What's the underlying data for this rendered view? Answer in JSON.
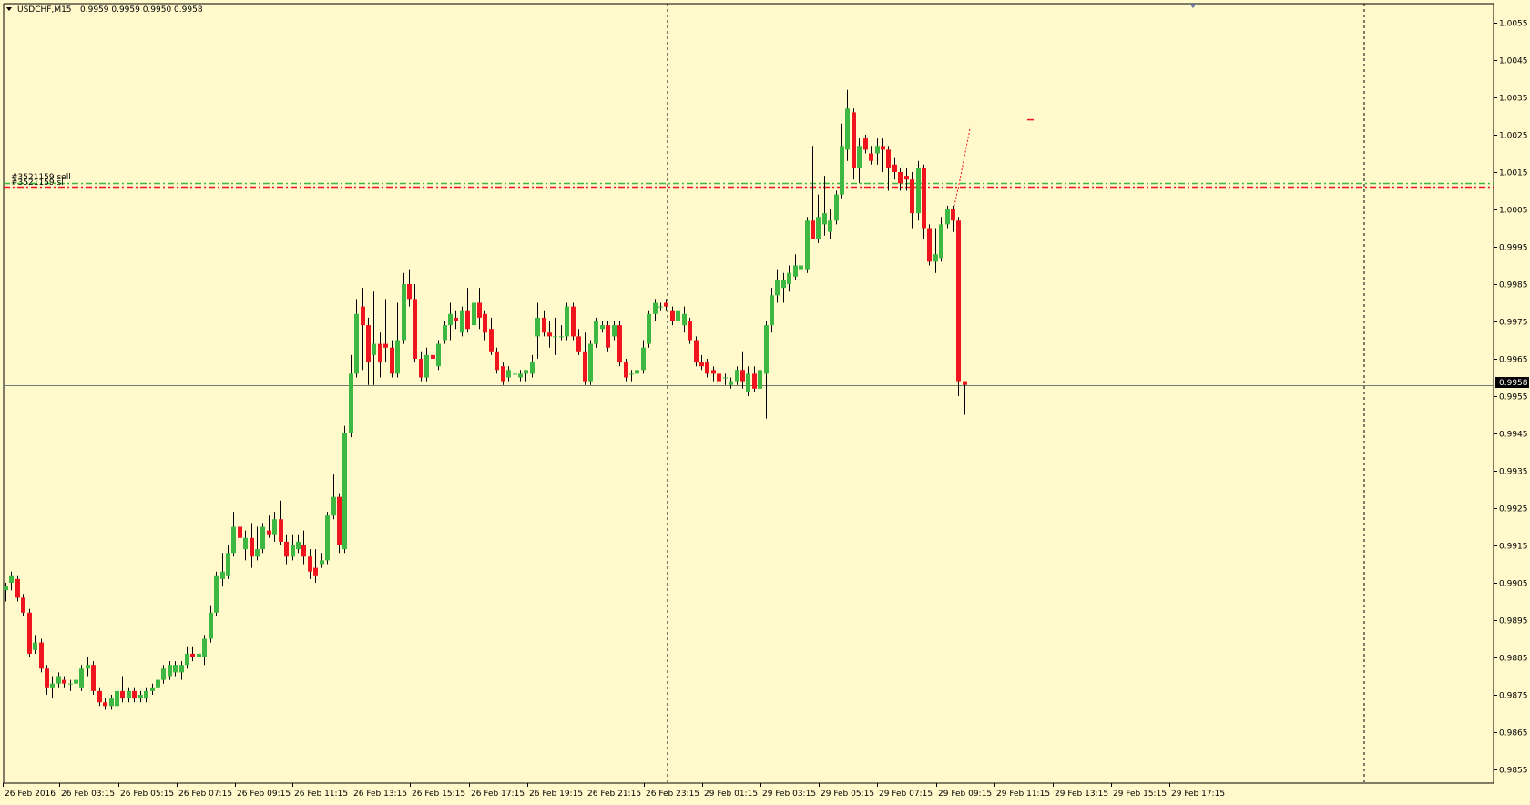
{
  "header": {
    "symbol": "USDCHF,M15",
    "ohlc": "0.9959 0.9959 0.9950 0.9958"
  },
  "current_price_label": "0.9958",
  "order_labels": [
    "#3521159 sell",
    "#3521159 sl"
  ],
  "colors": {
    "background": "#FFF9CC",
    "bull": "#3CB843",
    "bear": "#F0141E",
    "wick": "#000000",
    "order_line": "#3CB843",
    "sl_line": "#F0141E",
    "bid_line": "#6E7E6E",
    "separator": "#000000"
  },
  "chart_data": {
    "type": "candlestick",
    "symbol": "USDCHF",
    "timeframe": "M15",
    "ylim": [
      0.985,
      1.006
    ],
    "y_ticks": [
      "1.0055",
      "1.0045",
      "1.0035",
      "1.0025",
      "1.0015",
      "1.0005",
      "0.9995",
      "0.9985",
      "0.9975",
      "0.9965",
      "0.9955",
      "0.9945",
      "0.9935",
      "0.9925",
      "0.9915",
      "0.9905",
      "0.9895",
      "0.9885",
      "0.9875",
      "0.9865",
      "0.9855"
    ],
    "x_labels": [
      "26 Feb 2016",
      "26 Feb 03:15",
      "26 Feb 05:15",
      "26 Feb 07:15",
      "26 Feb 09:15",
      "26 Feb 11:15",
      "26 Feb 13:15",
      "26 Feb 15:15",
      "26 Feb 17:15",
      "26 Feb 19:15",
      "26 Feb 21:15",
      "26 Feb 23:15",
      "29 Feb 01:15",
      "29 Feb 03:15",
      "29 Feb 05:15",
      "29 Feb 07:15",
      "29 Feb 09:15",
      "29 Feb 11:15",
      "29 Feb 13:15",
      "29 Feb 15:15",
      "29 Feb 17:15"
    ],
    "horizontal_lines": [
      {
        "name": "#3521159 sell",
        "price": 1.0012,
        "style": "dash-dot",
        "color": "#3CB843"
      },
      {
        "name": "#3521159 sl",
        "price": 1.0011,
        "style": "dash-dot",
        "color": "#F0141E"
      },
      {
        "name": "bid",
        "price": 0.9958,
        "style": "solid",
        "color": "#6E7E6E"
      }
    ],
    "period_separators": [
      "26 Feb 23:15",
      "29 Feb 23:15"
    ],
    "candles": [
      {
        "o": 0.9903,
        "h": 0.9905,
        "l": 0.99,
        "c": 0.9904
      },
      {
        "o": 0.9905,
        "h": 0.9908,
        "l": 0.9903,
        "c": 0.9907
      },
      {
        "o": 0.9906,
        "h": 0.9907,
        "l": 0.99,
        "c": 0.9901
      },
      {
        "o": 0.9901,
        "h": 0.9902,
        "l": 0.9896,
        "c": 0.9897
      },
      {
        "o": 0.9897,
        "h": 0.9898,
        "l": 0.9885,
        "c": 0.9886
      },
      {
        "o": 0.9887,
        "h": 0.9891,
        "l": 0.9886,
        "c": 0.9889
      },
      {
        "o": 0.9889,
        "h": 0.989,
        "l": 0.9881,
        "c": 0.9882
      },
      {
        "o": 0.9882,
        "h": 0.9883,
        "l": 0.9875,
        "c": 0.9877
      },
      {
        "o": 0.9877,
        "h": 0.988,
        "l": 0.9874,
        "c": 0.9878
      },
      {
        "o": 0.9878,
        "h": 0.9881,
        "l": 0.9877,
        "c": 0.988
      },
      {
        "o": 0.9879,
        "h": 0.988,
        "l": 0.9877,
        "c": 0.9878
      },
      {
        "o": 0.9878,
        "h": 0.9879,
        "l": 0.9876,
        "c": 0.9878
      },
      {
        "o": 0.9878,
        "h": 0.9881,
        "l": 0.9877,
        "c": 0.9879
      },
      {
        "o": 0.9877,
        "h": 0.9883,
        "l": 0.9876,
        "c": 0.9882
      },
      {
        "o": 0.9882,
        "h": 0.9885,
        "l": 0.988,
        "c": 0.9883
      },
      {
        "o": 0.9883,
        "h": 0.9884,
        "l": 0.9875,
        "c": 0.9876
      },
      {
        "o": 0.9876,
        "h": 0.9877,
        "l": 0.9872,
        "c": 0.9873
      },
      {
        "o": 0.9873,
        "h": 0.9874,
        "l": 0.9871,
        "c": 0.9872
      },
      {
        "o": 0.9872,
        "h": 0.9875,
        "l": 0.9871,
        "c": 0.9874
      },
      {
        "o": 0.9872,
        "h": 0.9878,
        "l": 0.987,
        "c": 0.9876
      },
      {
        "o": 0.9876,
        "h": 0.988,
        "l": 0.9873,
        "c": 0.9874
      },
      {
        "o": 0.9874,
        "h": 0.9877,
        "l": 0.9873,
        "c": 0.9876
      },
      {
        "o": 0.9876,
        "h": 0.9877,
        "l": 0.9873,
        "c": 0.9874
      },
      {
        "o": 0.9874,
        "h": 0.9876,
        "l": 0.9873,
        "c": 0.9875
      },
      {
        "o": 0.9874,
        "h": 0.9877,
        "l": 0.9873,
        "c": 0.9876
      },
      {
        "o": 0.9876,
        "h": 0.9878,
        "l": 0.9875,
        "c": 0.9877
      },
      {
        "o": 0.9877,
        "h": 0.9881,
        "l": 0.9876,
        "c": 0.9879
      },
      {
        "o": 0.9879,
        "h": 0.9883,
        "l": 0.9878,
        "c": 0.9882
      },
      {
        "o": 0.988,
        "h": 0.9884,
        "l": 0.9879,
        "c": 0.9883
      },
      {
        "o": 0.9881,
        "h": 0.9884,
        "l": 0.988,
        "c": 0.9883
      },
      {
        "o": 0.9881,
        "h": 0.9884,
        "l": 0.9879,
        "c": 0.9883
      },
      {
        "o": 0.9883,
        "h": 0.9888,
        "l": 0.9882,
        "c": 0.9886
      },
      {
        "o": 0.9886,
        "h": 0.9888,
        "l": 0.9884,
        "c": 0.9885
      },
      {
        "o": 0.9885,
        "h": 0.9887,
        "l": 0.9883,
        "c": 0.9886
      },
      {
        "o": 0.9885,
        "h": 0.9891,
        "l": 0.9883,
        "c": 0.989
      },
      {
        "o": 0.989,
        "h": 0.9899,
        "l": 0.9889,
        "c": 0.9897
      },
      {
        "o": 0.9897,
        "h": 0.9908,
        "l": 0.9896,
        "c": 0.9907
      },
      {
        "o": 0.9906,
        "h": 0.9913,
        "l": 0.9904,
        "c": 0.9908
      },
      {
        "o": 0.9907,
        "h": 0.9915,
        "l": 0.9906,
        "c": 0.9913
      },
      {
        "o": 0.9913,
        "h": 0.9924,
        "l": 0.9912,
        "c": 0.992
      },
      {
        "o": 0.992,
        "h": 0.9922,
        "l": 0.9912,
        "c": 0.9917
      },
      {
        "o": 0.9914,
        "h": 0.9919,
        "l": 0.9911,
        "c": 0.9917
      },
      {
        "o": 0.9917,
        "h": 0.9921,
        "l": 0.9909,
        "c": 0.9912
      },
      {
        "o": 0.9912,
        "h": 0.992,
        "l": 0.9911,
        "c": 0.9914
      },
      {
        "o": 0.9914,
        "h": 0.9921,
        "l": 0.9913,
        "c": 0.992
      },
      {
        "o": 0.9919,
        "h": 0.9923,
        "l": 0.9917,
        "c": 0.9918
      },
      {
        "o": 0.9918,
        "h": 0.9924,
        "l": 0.9916,
        "c": 0.9922
      },
      {
        "o": 0.9922,
        "h": 0.9927,
        "l": 0.9915,
        "c": 0.9916
      },
      {
        "o": 0.9916,
        "h": 0.9918,
        "l": 0.991,
        "c": 0.9912
      },
      {
        "o": 0.9912,
        "h": 0.9918,
        "l": 0.9911,
        "c": 0.9915
      },
      {
        "o": 0.9914,
        "h": 0.9918,
        "l": 0.9913,
        "c": 0.9916
      },
      {
        "o": 0.9915,
        "h": 0.9919,
        "l": 0.991,
        "c": 0.9912
      },
      {
        "o": 0.9912,
        "h": 0.9914,
        "l": 0.9906,
        "c": 0.9908
      },
      {
        "o": 0.9909,
        "h": 0.9914,
        "l": 0.9905,
        "c": 0.9907
      },
      {
        "o": 0.991,
        "h": 0.9913,
        "l": 0.9909,
        "c": 0.9911
      },
      {
        "o": 0.9911,
        "h": 0.9924,
        "l": 0.991,
        "c": 0.9923
      },
      {
        "o": 0.9923,
        "h": 0.9934,
        "l": 0.9922,
        "c": 0.9928
      },
      {
        "o": 0.9928,
        "h": 0.9929,
        "l": 0.9913,
        "c": 0.9915
      },
      {
        "o": 0.9914,
        "h": 0.9947,
        "l": 0.9913,
        "c": 0.9945
      },
      {
        "o": 0.9945,
        "h": 0.9966,
        "l": 0.9944,
        "c": 0.9961
      },
      {
        "o": 0.9961,
        "h": 0.9981,
        "l": 0.996,
        "c": 0.9977
      },
      {
        "o": 0.9979,
        "h": 0.9984,
        "l": 0.9962,
        "c": 0.9974
      },
      {
        "o": 0.9974,
        "h": 0.9976,
        "l": 0.9958,
        "c": 0.9964
      },
      {
        "o": 0.9966,
        "h": 0.9983,
        "l": 0.9958,
        "c": 0.9969
      },
      {
        "o": 0.9969,
        "h": 0.9972,
        "l": 0.996,
        "c": 0.9964
      },
      {
        "o": 0.9969,
        "h": 0.9981,
        "l": 0.9964,
        "c": 0.9968
      },
      {
        "o": 0.9968,
        "h": 0.997,
        "l": 0.996,
        "c": 0.9961
      },
      {
        "o": 0.9961,
        "h": 0.998,
        "l": 0.996,
        "c": 0.997
      },
      {
        "o": 0.997,
        "h": 0.9988,
        "l": 0.9969,
        "c": 0.9985
      },
      {
        "o": 0.9985,
        "h": 0.9989,
        "l": 0.9979,
        "c": 0.9981
      },
      {
        "o": 0.9981,
        "h": 0.9985,
        "l": 0.9964,
        "c": 0.9965
      },
      {
        "o": 0.9965,
        "h": 0.9967,
        "l": 0.9959,
        "c": 0.996
      },
      {
        "o": 0.996,
        "h": 0.9968,
        "l": 0.9959,
        "c": 0.9966
      },
      {
        "o": 0.9966,
        "h": 0.9967,
        "l": 0.9963,
        "c": 0.9965
      },
      {
        "o": 0.9963,
        "h": 0.997,
        "l": 0.9962,
        "c": 0.9969
      },
      {
        "o": 0.997,
        "h": 0.9975,
        "l": 0.9969,
        "c": 0.9974
      },
      {
        "o": 0.9974,
        "h": 0.998,
        "l": 0.997,
        "c": 0.9977
      },
      {
        "o": 0.9976,
        "h": 0.9978,
        "l": 0.9973,
        "c": 0.9975
      },
      {
        "o": 0.9972,
        "h": 0.9979,
        "l": 0.9971,
        "c": 0.9978
      },
      {
        "o": 0.9978,
        "h": 0.9984,
        "l": 0.9972,
        "c": 0.9973
      },
      {
        "o": 0.9974,
        "h": 0.9982,
        "l": 0.9972,
        "c": 0.998
      },
      {
        "o": 0.998,
        "h": 0.9984,
        "l": 0.9973,
        "c": 0.9976
      },
      {
        "o": 0.9977,
        "h": 0.9978,
        "l": 0.997,
        "c": 0.9972
      },
      {
        "o": 0.9973,
        "h": 0.9976,
        "l": 0.9966,
        "c": 0.9967
      },
      {
        "o": 0.9967,
        "h": 0.9968,
        "l": 0.9961,
        "c": 0.9962
      },
      {
        "o": 0.9963,
        "h": 0.9964,
        "l": 0.9958,
        "c": 0.9959
      },
      {
        "o": 0.996,
        "h": 0.9963,
        "l": 0.9959,
        "c": 0.9962
      },
      {
        "o": 0.9961,
        "h": 0.9962,
        "l": 0.996,
        "c": 0.9961
      },
      {
        "o": 0.996,
        "h": 0.9962,
        "l": 0.9959,
        "c": 0.9961
      },
      {
        "o": 0.9961,
        "h": 0.9962,
        "l": 0.9959,
        "c": 0.9962
      },
      {
        "o": 0.9961,
        "h": 0.9966,
        "l": 0.996,
        "c": 0.9964
      },
      {
        "o": 0.9971,
        "h": 0.998,
        "l": 0.9965,
        "c": 0.9976
      },
      {
        "o": 0.9976,
        "h": 0.9978,
        "l": 0.9971,
        "c": 0.9972
      },
      {
        "o": 0.9972,
        "h": 0.9975,
        "l": 0.9968,
        "c": 0.9971
      },
      {
        "o": 0.9971,
        "h": 0.9976,
        "l": 0.9966,
        "c": 0.9971
      },
      {
        "o": 0.9971,
        "h": 0.9974,
        "l": 0.997,
        "c": 0.9971
      },
      {
        "o": 0.9971,
        "h": 0.998,
        "l": 0.997,
        "c": 0.9979
      },
      {
        "o": 0.9979,
        "h": 0.998,
        "l": 0.997,
        "c": 0.9971
      },
      {
        "o": 0.9971,
        "h": 0.9973,
        "l": 0.9966,
        "c": 0.9967
      },
      {
        "o": 0.9967,
        "h": 0.9972,
        "l": 0.9958,
        "c": 0.9959
      },
      {
        "o": 0.9959,
        "h": 0.997,
        "l": 0.9958,
        "c": 0.9969
      },
      {
        "o": 0.9969,
        "h": 0.9976,
        "l": 0.9968,
        "c": 0.9975
      },
      {
        "o": 0.9973,
        "h": 0.9975,
        "l": 0.9972,
        "c": 0.9974
      },
      {
        "o": 0.9974,
        "h": 0.9975,
        "l": 0.9967,
        "c": 0.9968
      },
      {
        "o": 0.9971,
        "h": 0.9975,
        "l": 0.997,
        "c": 0.9974
      },
      {
        "o": 0.9974,
        "h": 0.9975,
        "l": 0.9963,
        "c": 0.9964
      },
      {
        "o": 0.9964,
        "h": 0.9965,
        "l": 0.9959,
        "c": 0.996
      },
      {
        "o": 0.9961,
        "h": 0.9962,
        "l": 0.9959,
        "c": 0.9961
      },
      {
        "o": 0.9961,
        "h": 0.9963,
        "l": 0.996,
        "c": 0.9962
      },
      {
        "o": 0.9962,
        "h": 0.997,
        "l": 0.9961,
        "c": 0.9968
      },
      {
        "o": 0.9969,
        "h": 0.9978,
        "l": 0.9968,
        "c": 0.9977
      },
      {
        "o": 0.9977,
        "h": 0.9981,
        "l": 0.9975,
        "c": 0.998
      },
      {
        "o": 0.9979,
        "h": 0.998,
        "l": 0.9978,
        "c": 0.9979
      },
      {
        "o": 0.998,
        "h": 0.9981,
        "l": 0.9978,
        "c": 0.9979
      },
      {
        "o": 0.9978,
        "h": 0.9979,
        "l": 0.9974,
        "c": 0.9975
      },
      {
        "o": 0.9975,
        "h": 0.9979,
        "l": 0.9974,
        "c": 0.9978
      },
      {
        "o": 0.9974,
        "h": 0.9979,
        "l": 0.9972,
        "c": 0.9977
      },
      {
        "o": 0.9975,
        "h": 0.9976,
        "l": 0.9969,
        "c": 0.997
      },
      {
        "o": 0.997,
        "h": 0.9971,
        "l": 0.9963,
        "c": 0.9964
      },
      {
        "o": 0.9964,
        "h": 0.9966,
        "l": 0.9962,
        "c": 0.9963
      },
      {
        "o": 0.9964,
        "h": 0.9965,
        "l": 0.996,
        "c": 0.9961
      },
      {
        "o": 0.9962,
        "h": 0.9963,
        "l": 0.9959,
        "c": 0.9961
      },
      {
        "o": 0.9961,
        "h": 0.9962,
        "l": 0.9958,
        "c": 0.9959
      },
      {
        "o": 0.996,
        "h": 0.9961,
        "l": 0.9958,
        "c": 0.996
      },
      {
        "o": 0.9958,
        "h": 0.996,
        "l": 0.9957,
        "c": 0.9959
      },
      {
        "o": 0.9959,
        "h": 0.9963,
        "l": 0.9958,
        "c": 0.9962
      },
      {
        "o": 0.9962,
        "h": 0.9967,
        "l": 0.9957,
        "c": 0.9959
      },
      {
        "o": 0.9956,
        "h": 0.9963,
        "l": 0.9955,
        "c": 0.9961
      },
      {
        "o": 0.9961,
        "h": 0.9963,
        "l": 0.9956,
        "c": 0.9957
      },
      {
        "o": 0.9957,
        "h": 0.9963,
        "l": 0.9954,
        "c": 0.9962
      },
      {
        "o": 0.9961,
        "h": 0.9975,
        "l": 0.9949,
        "c": 0.9974
      },
      {
        "o": 0.9974,
        "h": 0.9984,
        "l": 0.9972,
        "c": 0.9982
      },
      {
        "o": 0.9982,
        "h": 0.9989,
        "l": 0.998,
        "c": 0.9986
      },
      {
        "o": 0.9984,
        "h": 0.9988,
        "l": 0.998,
        "c": 0.9986
      },
      {
        "o": 0.9985,
        "h": 0.999,
        "l": 0.9983,
        "c": 0.9988
      },
      {
        "o": 0.9987,
        "h": 0.9993,
        "l": 0.9986,
        "c": 0.999
      },
      {
        "o": 0.9989,
        "h": 0.9993,
        "l": 0.9987,
        "c": 0.999
      },
      {
        "o": 0.9989,
        "h": 1.0003,
        "l": 0.9988,
        "c": 1.0002
      },
      {
        "o": 1.0002,
        "h": 1.0022,
        "l": 0.9997,
        "c": 0.9997
      },
      {
        "o": 0.9997,
        "h": 1.0009,
        "l": 0.9996,
        "c": 1.0003
      },
      {
        "o": 1.0001,
        "h": 1.0014,
        "l": 0.9998,
        "c": 1.0004
      },
      {
        "o": 0.9999,
        "h": 1.0005,
        "l": 0.9997,
        "c": 1.0002
      },
      {
        "o": 1.0002,
        "h": 1.001,
        "l": 1.0001,
        "c": 1.0009
      },
      {
        "o": 1.0009,
        "h": 1.0028,
        "l": 1.0008,
        "c": 1.0022
      },
      {
        "o": 1.0021,
        "h": 1.0037,
        "l": 1.0018,
        "c": 1.0032
      },
      {
        "o": 1.0031,
        "h": 1.0032,
        "l": 1.0013,
        "c": 1.0016
      },
      {
        "o": 1.0016,
        "h": 1.0024,
        "l": 1.0012,
        "c": 1.0022
      },
      {
        "o": 1.0024,
        "h": 1.0025,
        "l": 1.002,
        "c": 1.0021
      },
      {
        "o": 1.002,
        "h": 1.0022,
        "l": 1.0017,
        "c": 1.0018
      },
      {
        "o": 1.002,
        "h": 1.0024,
        "l": 1.0017,
        "c": 1.0022
      },
      {
        "o": 1.0022,
        "h": 1.0024,
        "l": 1.0015,
        "c": 1.0021
      },
      {
        "o": 1.0021,
        "h": 1.0022,
        "l": 1.001,
        "c": 1.0016
      },
      {
        "o": 1.0017,
        "h": 1.0019,
        "l": 1.0013,
        "c": 1.0015
      },
      {
        "o": 1.0015,
        "h": 1.0016,
        "l": 1.001,
        "c": 1.0012
      },
      {
        "o": 1.0014,
        "h": 1.0016,
        "l": 1.001,
        "c": 1.0013
      },
      {
        "o": 1.0013,
        "h": 1.0015,
        "l": 1.0,
        "c": 1.0004
      },
      {
        "o": 1.0004,
        "h": 1.0018,
        "l": 1.0002,
        "c": 1.0016
      },
      {
        "o": 1.0016,
        "h": 1.0017,
        "l": 0.9997,
        "c": 1.0
      },
      {
        "o": 1.0,
        "h": 1.0001,
        "l": 0.999,
        "c": 0.9991
      },
      {
        "o": 0.9991,
        "h": 1.0,
        "l": 0.9988,
        "c": 0.9993
      },
      {
        "o": 0.9992,
        "h": 1.0003,
        "l": 0.9991,
        "c": 1.0001
      },
      {
        "o": 1.0001,
        "h": 1.0006,
        "l": 1.0,
        "c": 1.0005
      },
      {
        "o": 1.0005,
        "h": 1.0006,
        "l": 0.9999,
        "c": 1.0002
      },
      {
        "o": 1.0002,
        "h": 1.0003,
        "l": 0.9955,
        "c": 0.9959
      },
      {
        "o": 0.9959,
        "h": 0.9959,
        "l": 0.995,
        "c": 0.9958
      }
    ]
  }
}
